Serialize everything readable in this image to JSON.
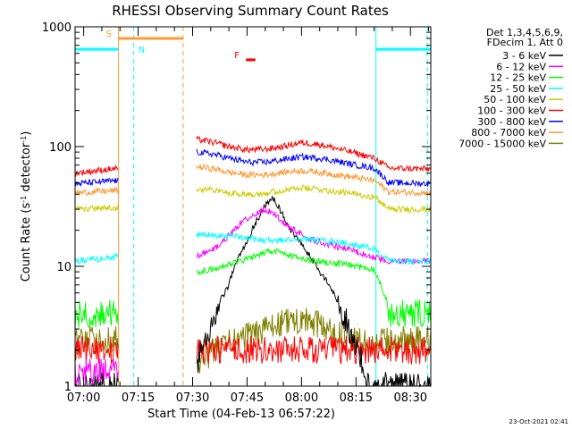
{
  "chart_data": {
    "type": "line",
    "title": "RHESSI Observing Summary Count Rates",
    "xlabel": "Start Time (04-Feb-13 06:57:22)",
    "ylabel_parts": [
      "Count Rate (s",
      "-1",
      " detector",
      "-1",
      ")"
    ],
    "yscale": "log",
    "ylim": [
      1,
      1000
    ],
    "xlim_minutes": [
      -2.37,
      95.6
    ],
    "x_unit": "minutes after 07:00 UT",
    "xticks": [
      {
        "t": 0,
        "label": "07:00"
      },
      {
        "t": 15,
        "label": "07:15"
      },
      {
        "t": 30,
        "label": "07:30"
      },
      {
        "t": 45,
        "label": "07:45"
      },
      {
        "t": 60,
        "label": "08:00"
      },
      {
        "t": 75,
        "label": "08:15"
      },
      {
        "t": 90,
        "label": "08:30"
      }
    ],
    "yticks": [
      {
        "v": 1,
        "label": "1"
      },
      {
        "v": 10,
        "label": "10"
      },
      {
        "v": 100,
        "label": "100"
      },
      {
        "v": 1000,
        "label": "1000"
      }
    ],
    "legend_header": [
      "Det 1,3,4,5,6,9,",
      "FDecim 1, Att 0"
    ],
    "gaps": [
      [
        9.6,
        31.0
      ]
    ],
    "series": [
      {
        "name": "3 - 6 keV",
        "color": "#000000",
        "points": [
          [
            -2.4,
            1
          ],
          [
            9.6,
            1
          ],
          [
            31,
            1.5
          ],
          [
            35,
            3
          ],
          [
            40,
            7
          ],
          [
            45,
            16
          ],
          [
            48,
            25
          ],
          [
            50,
            32
          ],
          [
            52,
            38
          ],
          [
            54,
            30
          ],
          [
            56,
            22
          ],
          [
            60,
            15
          ],
          [
            65,
            9
          ],
          [
            70,
            5
          ],
          [
            73,
            3
          ],
          [
            76,
            1.8
          ],
          [
            78,
            1
          ],
          [
            95.6,
            1
          ]
        ]
      },
      {
        "name": "6 - 12 keV",
        "color": "#ff00ff",
        "points": [
          [
            -2.4,
            1.3
          ],
          [
            9.6,
            1.3
          ],
          [
            31,
            12
          ],
          [
            36,
            14
          ],
          [
            40,
            18
          ],
          [
            44,
            24
          ],
          [
            48,
            28
          ],
          [
            50,
            30
          ],
          [
            52,
            28
          ],
          [
            55,
            23
          ],
          [
            58,
            20
          ],
          [
            62,
            17
          ],
          [
            68,
            15
          ],
          [
            72,
            14
          ],
          [
            76,
            13
          ],
          [
            80,
            12
          ],
          [
            84,
            11
          ],
          [
            88,
            11
          ],
          [
            95.6,
            11
          ]
        ]
      },
      {
        "name": "12 - 25 keV",
        "color": "#00ff00",
        "points": [
          [
            -2.4,
            4
          ],
          [
            9.6,
            4
          ],
          [
            31,
            9
          ],
          [
            36,
            9.5
          ],
          [
            40,
            10.5
          ],
          [
            45,
            11.5
          ],
          [
            50,
            13
          ],
          [
            52,
            13.5
          ],
          [
            56,
            12.5
          ],
          [
            60,
            11.5
          ],
          [
            65,
            11
          ],
          [
            70,
            10.5
          ],
          [
            75,
            10
          ],
          [
            80,
            9.5
          ],
          [
            84,
            4
          ],
          [
            95.6,
            4
          ]
        ]
      },
      {
        "name": "25 - 50 keV",
        "color": "#00ffff",
        "points": [
          [
            -2.4,
            11
          ],
          [
            9.6,
            12
          ],
          [
            31,
            18.5
          ],
          [
            40,
            18
          ],
          [
            45,
            17
          ],
          [
            50,
            16.5
          ],
          [
            55,
            16.5
          ],
          [
            60,
            17
          ],
          [
            65,
            16.5
          ],
          [
            70,
            16
          ],
          [
            75,
            15
          ],
          [
            80,
            14
          ],
          [
            84,
            11
          ],
          [
            95.6,
            11
          ]
        ]
      },
      {
        "name": "50 - 100 keV",
        "color": "#cccc00",
        "points": [
          [
            -2.4,
            30
          ],
          [
            9.6,
            31
          ],
          [
            31,
            45
          ],
          [
            36,
            43
          ],
          [
            40,
            41
          ],
          [
            45,
            40
          ],
          [
            50,
            41
          ],
          [
            55,
            43
          ],
          [
            60,
            45
          ],
          [
            65,
            44
          ],
          [
            70,
            42
          ],
          [
            75,
            40
          ],
          [
            80,
            38
          ],
          [
            84,
            30
          ],
          [
            95.6,
            30
          ]
        ]
      },
      {
        "name": "100 - 300 keV",
        "color": "#ff0000",
        "points": [
          [
            -2.4,
            2
          ],
          [
            9.6,
            2
          ],
          [
            95.6,
            2
          ]
        ]
      },
      {
        "name": "300 - 800 keV",
        "color": "#0000ff",
        "points": [
          [
            -2.4,
            49
          ],
          [
            9.6,
            52
          ],
          [
            31,
            90
          ],
          [
            36,
            86
          ],
          [
            40,
            80
          ],
          [
            45,
            74
          ],
          [
            50,
            74
          ],
          [
            55,
            78
          ],
          [
            60,
            82
          ],
          [
            65,
            80
          ],
          [
            70,
            75
          ],
          [
            75,
            70
          ],
          [
            80,
            66
          ],
          [
            84,
            50
          ],
          [
            95.6,
            49
          ]
        ]
      },
      {
        "name": "800 - 7000 keV",
        "color": "#ff9933",
        "points": [
          [
            -2.4,
            41
          ],
          [
            9.6,
            43
          ],
          [
            31,
            68
          ],
          [
            36,
            65
          ],
          [
            40,
            61
          ],
          [
            45,
            58
          ],
          [
            50,
            58
          ],
          [
            55,
            61
          ],
          [
            60,
            63
          ],
          [
            65,
            61
          ],
          [
            70,
            58
          ],
          [
            75,
            55
          ],
          [
            80,
            52
          ],
          [
            84,
            42
          ],
          [
            95.6,
            41
          ]
        ]
      },
      {
        "name": "7000 - 15000 keV",
        "color": "#808000",
        "points": [
          [
            -2.4,
            2.4
          ],
          [
            9.6,
            2.4
          ],
          [
            31,
            1.5
          ],
          [
            36,
            2
          ],
          [
            40,
            2.3
          ],
          [
            45,
            2.6
          ],
          [
            50,
            2.9
          ],
          [
            55,
            3.4
          ],
          [
            60,
            3.5
          ],
          [
            65,
            3.2
          ],
          [
            70,
            2.8
          ],
          [
            75,
            2.4
          ],
          [
            80,
            2.2
          ],
          [
            84,
            2.4
          ],
          [
            95.6,
            2.4
          ]
        ]
      }
    ],
    "upper_series": [
      {
        "name": "100 - 300 keV (upper)",
        "color": "#ff0000",
        "points": [
          [
            -2.4,
            60
          ],
          [
            9.6,
            66
          ],
          [
            31,
            115
          ],
          [
            36,
            108
          ],
          [
            40,
            100
          ],
          [
            45,
            94
          ],
          [
            50,
            95
          ],
          [
            55,
            100
          ],
          [
            60,
            108
          ],
          [
            65,
            104
          ],
          [
            70,
            96
          ],
          [
            75,
            88
          ],
          [
            80,
            80
          ],
          [
            84,
            66
          ],
          [
            95.6,
            65
          ]
        ]
      }
    ],
    "annotations": [
      {
        "label": "S",
        "kind": "orange-bar",
        "color": "#ff9933",
        "t_start": 9.6,
        "t_end": 27.4,
        "level": 800
      },
      {
        "label": "N",
        "kind": "cyan-bar",
        "color": "#00ffff",
        "segments": [
          [
            -2.4,
            9.6
          ],
          [
            80.5,
            95.6
          ]
        ],
        "level": 650
      },
      {
        "label": "F",
        "kind": "red-bar",
        "color": "#ff0000",
        "t_start": 44.7,
        "t_end": 47.3,
        "level": 530
      }
    ],
    "vertical_lines": [
      {
        "t": 9.6,
        "color": "#ff9933",
        "style": "solid"
      },
      {
        "t": 13.8,
        "color": "#00ffff",
        "style": "dashed"
      },
      {
        "t": 27.4,
        "color": "#ff9933",
        "style": "dashed"
      },
      {
        "t": 80.5,
        "color": "#00ffff",
        "style": "solid"
      },
      {
        "t": 94.7,
        "color": "#00ffff",
        "style": "dashed"
      }
    ],
    "timestamp": "23-Oct-2021 02:41"
  }
}
